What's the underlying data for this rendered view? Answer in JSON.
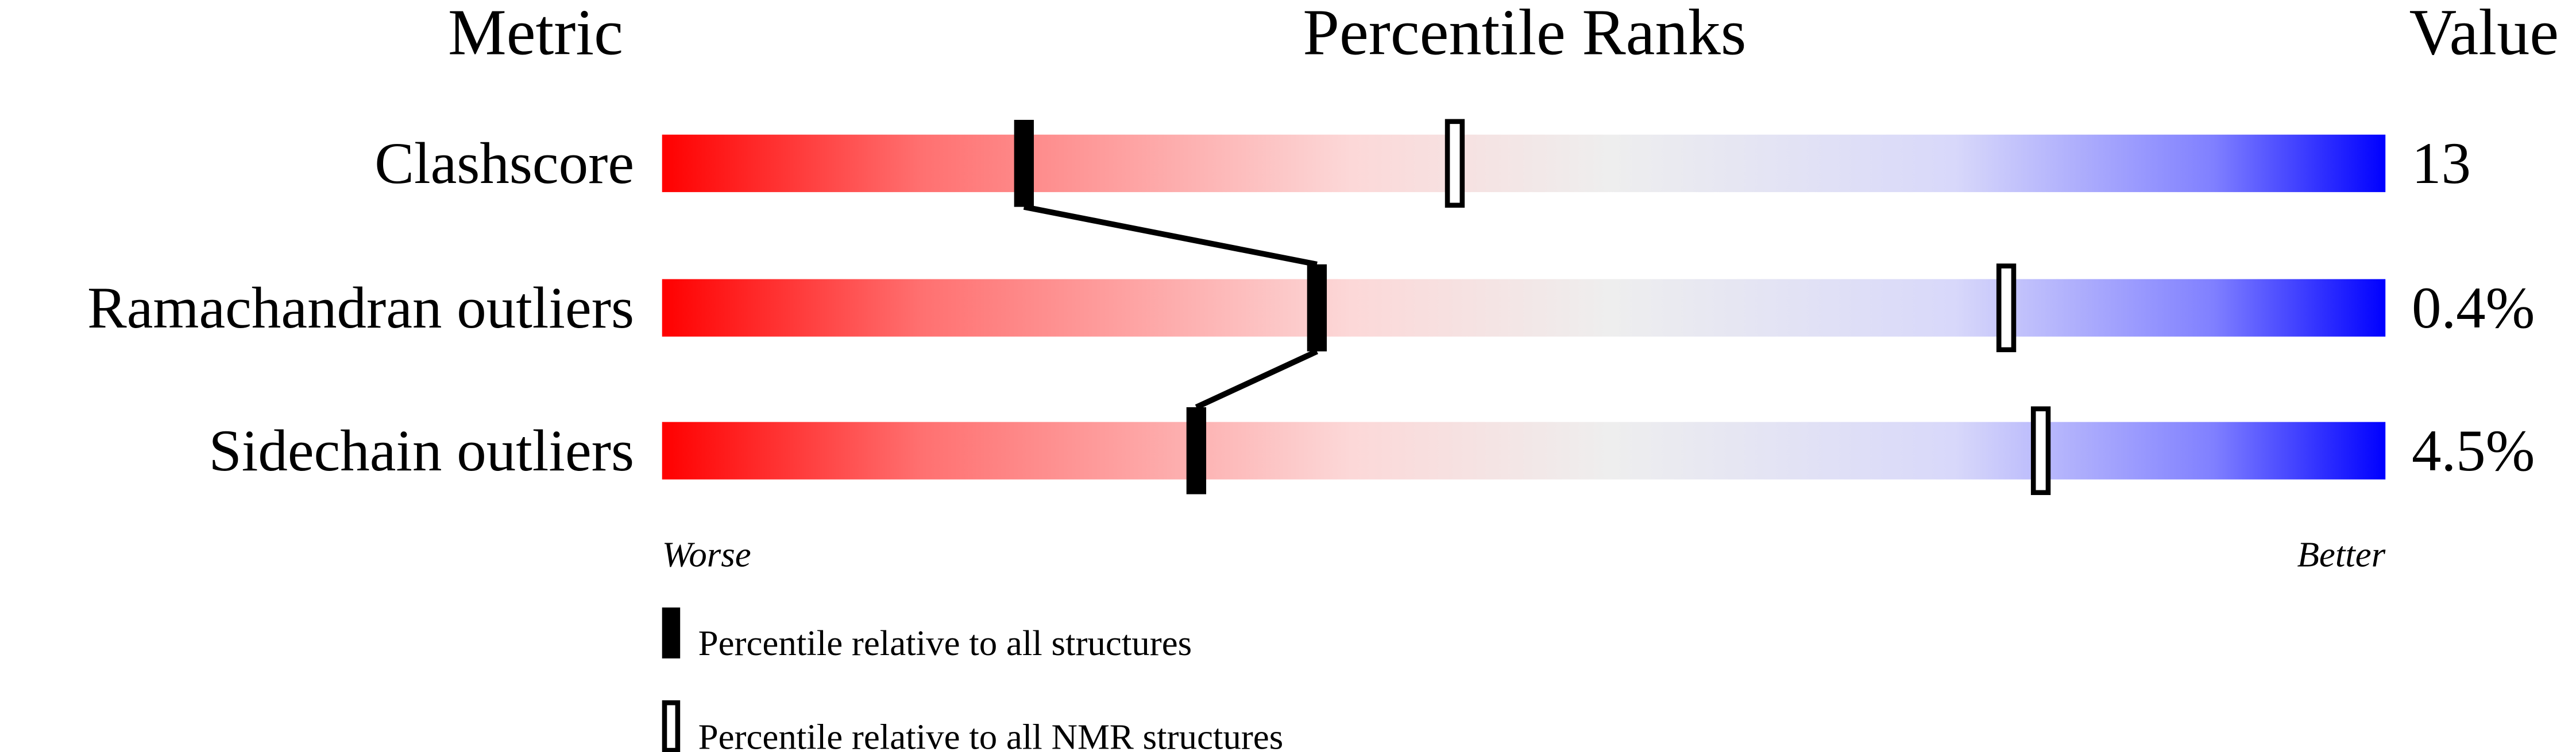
{
  "chart_data": {
    "type": "bar",
    "headers": {
      "metric": "Metric",
      "ranks": "Percentile Ranks",
      "value": "Value"
    },
    "metrics": [
      {
        "label": "Clashscore",
        "value": "13",
        "percentile_all": 21,
        "percentile_nmr": 46
      },
      {
        "label": "Ramachandran outliers",
        "value": "0.4%",
        "percentile_all": 38,
        "percentile_nmr": 78
      },
      {
        "label": "Sidechain outliers",
        "value": "4.5%",
        "percentile_all": 31,
        "percentile_nmr": 80
      }
    ],
    "xlim": [
      0,
      100
    ],
    "axis_left_label": "Worse",
    "axis_right_label": "Better",
    "legend": {
      "all": "Percentile relative to all structures",
      "nmr": "Percentile relative to all NMR structures"
    },
    "gradient_colors": [
      "#ff0000",
      "#ff7070",
      "#fcd8d8",
      "#eeeeee",
      "#d8d8fa",
      "#8080ff",
      "#0000ff"
    ]
  }
}
